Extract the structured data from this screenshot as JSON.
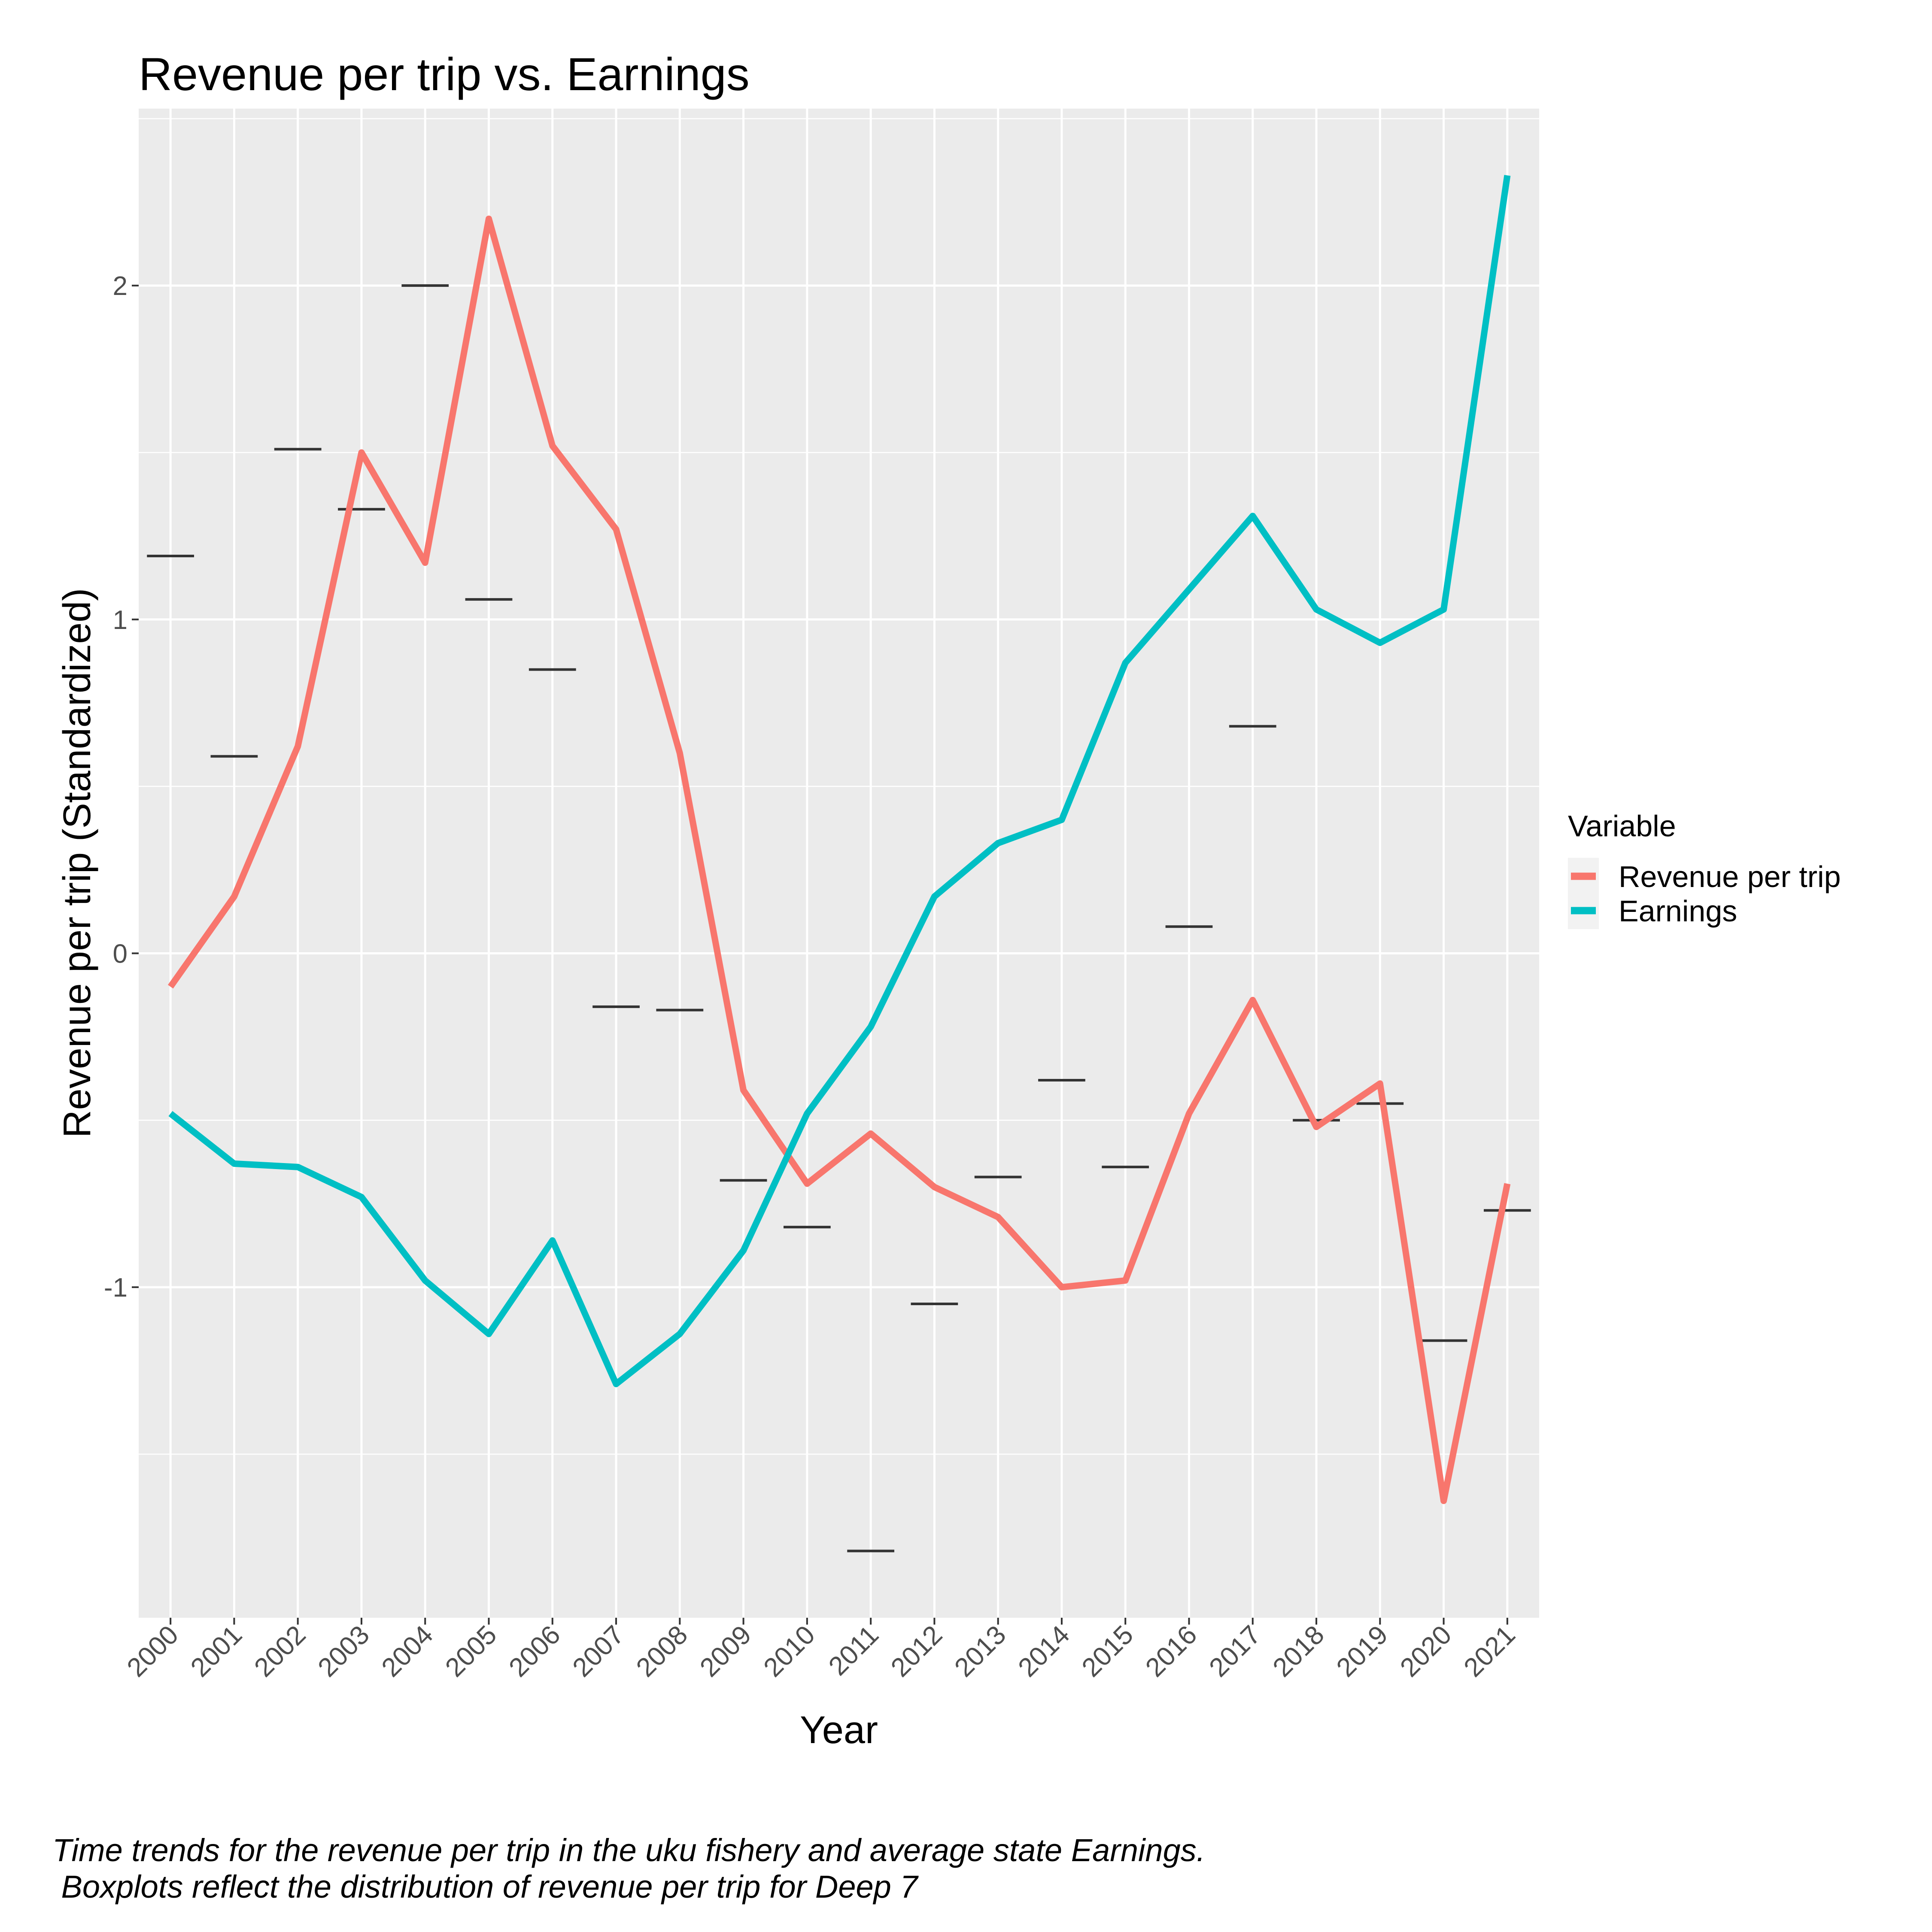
{
  "chart_data": {
    "type": "line",
    "title": "Revenue per trip vs. Earnings",
    "xlabel": "Year",
    "ylabel": "Revenue per trip (Standardized)",
    "caption_lines": [
      "Time trends for the revenue per trip in the uku fishery and average state Earnings.",
      " Boxplots reflect the distribution of revenue per trip for Deep 7"
    ],
    "x": [
      "2000",
      "2001",
      "2002",
      "2003",
      "2004",
      "2005",
      "2006",
      "2007",
      "2008",
      "2009",
      "2010",
      "2011",
      "2012",
      "2013",
      "2014",
      "2015",
      "2016",
      "2017",
      "2018",
      "2019",
      "2020",
      "2021"
    ],
    "ylim": [
      -1.99,
      2.53
    ],
    "y_ticks": [
      -1,
      0,
      1,
      2
    ],
    "y_tick_labels": [
      "-1",
      "0",
      "1",
      "2"
    ],
    "grid": true,
    "legend": {
      "title": "Variable",
      "position": "right"
    },
    "series": [
      {
        "name": "Revenue per trip",
        "color": "#F8766D",
        "values": [
          -0.1,
          0.17,
          0.62,
          1.5,
          1.17,
          2.2,
          1.52,
          1.27,
          0.6,
          -0.41,
          -0.69,
          -0.54,
          -0.7,
          -0.79,
          -1.0,
          -0.98,
          -0.48,
          -0.14,
          -0.52,
          -0.39,
          -1.64,
          -0.69
        ]
      },
      {
        "name": "Earnings",
        "color": "#00BFC4",
        "values": [
          -0.48,
          -0.63,
          -0.64,
          -0.73,
          -0.98,
          -1.14,
          -0.86,
          -1.29,
          -1.14,
          -0.89,
          -0.48,
          -0.22,
          0.17,
          0.33,
          0.4,
          0.87,
          1.09,
          1.31,
          1.03,
          0.93,
          1.03,
          2.33
        ]
      }
    ],
    "boxplot_medians": {
      "color": "#333333",
      "values": [
        1.19,
        0.59,
        1.51,
        1.33,
        2.0,
        1.06,
        0.85,
        -0.16,
        -0.17,
        -0.68,
        -0.82,
        -1.79,
        -1.05,
        -0.67,
        -0.38,
        -0.64,
        0.08,
        0.68,
        -0.5,
        -0.45,
        -1.16,
        -0.77
      ]
    }
  }
}
